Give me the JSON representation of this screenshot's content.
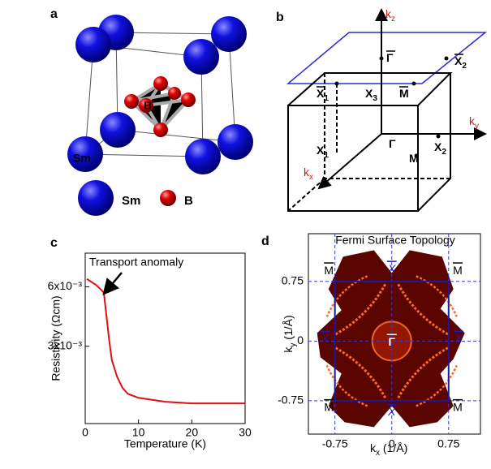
{
  "panels": {
    "a": {
      "label": "a",
      "atom_labels": [
        "B",
        "Sm"
      ],
      "legend": [
        "Sm",
        "B"
      ]
    },
    "b": {
      "label": "b",
      "axes": [
        {
          "base": "k",
          "sub": "z"
        },
        {
          "base": "k",
          "sub": "y"
        },
        {
          "base": "k",
          "sub": "x"
        }
      ],
      "points": [
        {
          "text": "Γ",
          "bar": true
        },
        {
          "text": "X",
          "sub": "2",
          "bar": true
        },
        {
          "text": "X",
          "sub": "1",
          "bar": true
        },
        {
          "text": "X",
          "sub": "3",
          "bar": false
        },
        {
          "text": "M",
          "bar": true
        },
        {
          "text": "X",
          "sub": "1",
          "bar": false
        },
        {
          "text": "Γ",
          "bar": false
        },
        {
          "text": "X",
          "sub": "2",
          "bar": false
        },
        {
          "text": "M",
          "bar": false
        }
      ]
    }
  },
  "chart_data": [
    {
      "type": "line",
      "panel_label": "c",
      "xlabel": "Temperature (K)",
      "ylabel": "Resistivity (Ωcm)",
      "annotation": "Transport anomaly",
      "color": "#e01010",
      "x": [
        0.3,
        2,
        3,
        3.5,
        4,
        4.5,
        5,
        6,
        7,
        8,
        10,
        15,
        20,
        30
      ],
      "values": [
        0.0064,
        0.0061,
        0.00585,
        0.0057,
        0.0045,
        0.0033,
        0.0023,
        0.00145,
        0.0009,
        0.0006,
        0.0004,
        0.0002,
        0.00012,
        0.00012
      ],
      "xlim": [
        0,
        30
      ],
      "ylim": [
        -0.0009,
        0.0077
      ],
      "xticks": [
        0,
        10,
        20,
        30
      ],
      "yticks": [
        {
          "value": 0.003,
          "label": "3x10⁻³"
        },
        {
          "value": 0.006,
          "label": "6x10⁻³"
        }
      ]
    },
    {
      "type": "image",
      "panel_label": "d",
      "title": "Fermi Surface Topology",
      "xlabel": {
        "base": "k",
        "sub": "x",
        "unit": " (1/Å)"
      },
      "ylabel": {
        "base": "k",
        "sub": "y",
        "unit": " (1/Å)"
      },
      "xlim": [
        -1.1,
        1.17
      ],
      "ylim": [
        -1.17,
        1.35
      ],
      "xticks": [
        -0.75,
        0,
        0.75
      ],
      "yticks": [
        -0.75,
        0,
        0.75
      ],
      "grid": true,
      "grid_color": "#3a3ad0",
      "symmetry_labels": [
        "M",
        "X",
        "M",
        "X",
        "Γ",
        "X",
        "M",
        "X",
        "M"
      ]
    }
  ]
}
